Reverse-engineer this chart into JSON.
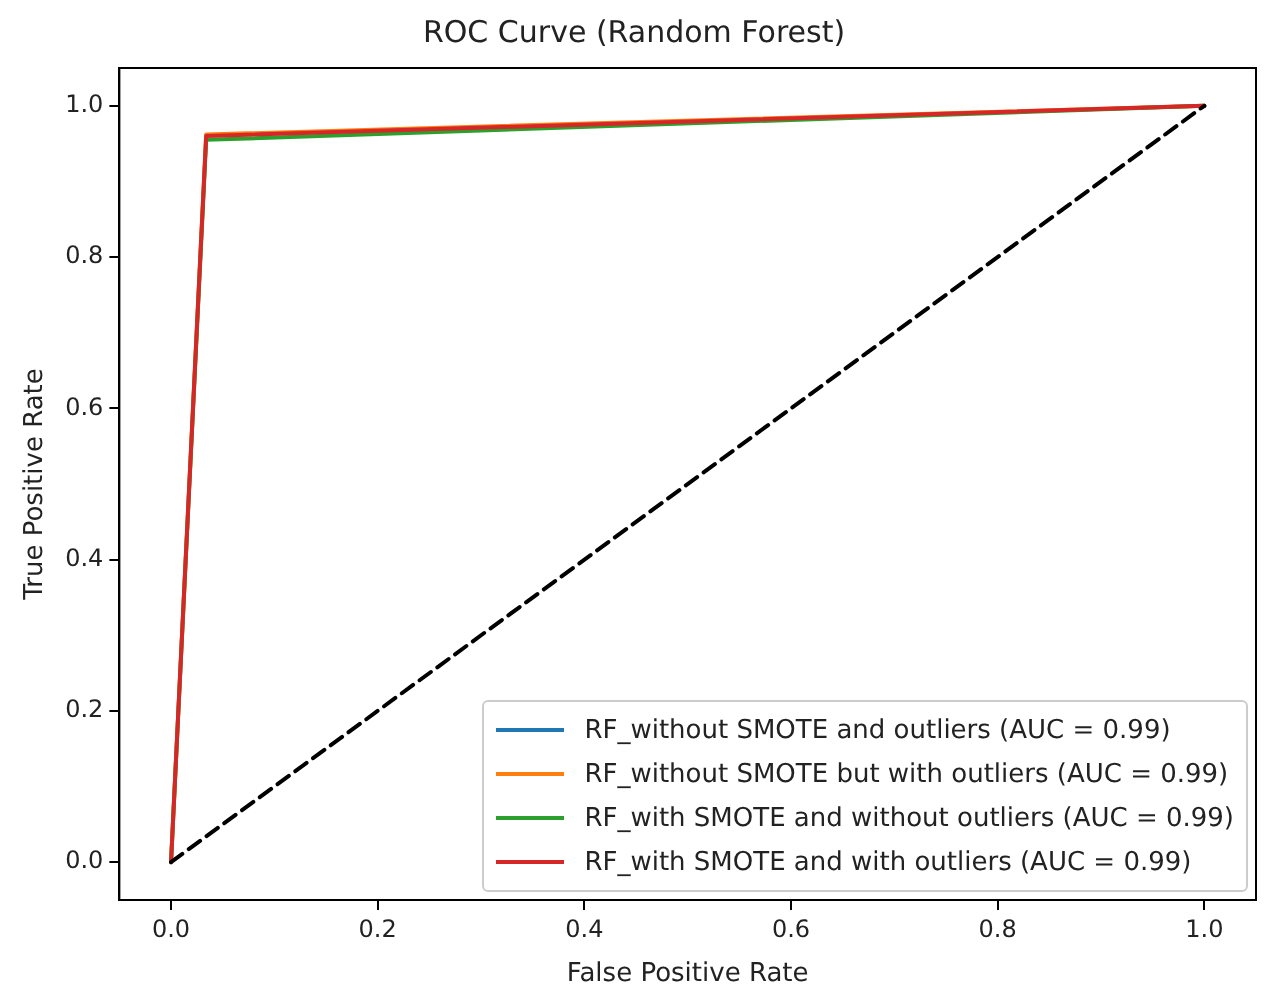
{
  "chart_data": {
    "type": "line",
    "title": "ROC Curve (Random Forest)",
    "xlabel": "False Positive Rate",
    "ylabel": "True Positive Rate",
    "xlim": [
      -0.05,
      1.05
    ],
    "ylim": [
      -0.05,
      1.05
    ],
    "xticks": [
      {
        "value": 0,
        "label": "0.0"
      },
      0.2,
      0.4,
      0.6,
      0.8,
      {
        "value": 1,
        "label": "1.0"
      }
    ],
    "yticks": [
      {
        "value": 0,
        "label": "0.0"
      },
      0.2,
      0.4,
      0.6,
      0.8,
      {
        "value": 1,
        "label": "1.0"
      }
    ],
    "grid": false,
    "legend": "bottom right",
    "marker": "none",
    "series": [
      {
        "name": "RF_without SMOTE and outliers (AUC = 0.99)",
        "color": "#1f77b4"
      },
      {
        "name": "RF_without SMOTE but with outliers (AUC = 0.99)",
        "color": "#ff7f0e",
        "x": [
          0,
          0.034,
          1
        ],
        "values": [
          0,
          0.962,
          1
        ]
      },
      {
        "name": "RF_with SMOTE and without outliers (AUC = 0.99)",
        "color": "#2ca02c",
        "x": [
          0,
          0.034,
          1
        ],
        "values": [
          0,
          0.955,
          1
        ]
      },
      {
        "name": "RF_with SMOTE and with outliers (AUC = 0.99)",
        "color": "#d62728",
        "x": [
          0,
          0.034,
          1
        ],
        "values": [
          0,
          0.96,
          1
        ]
      },
      {
        "color": "#000000",
        "x": [
          0,
          1
        ],
        "values": [
          0,
          1
        ],
        "line_style": "dashed"
      }
    ]
  }
}
